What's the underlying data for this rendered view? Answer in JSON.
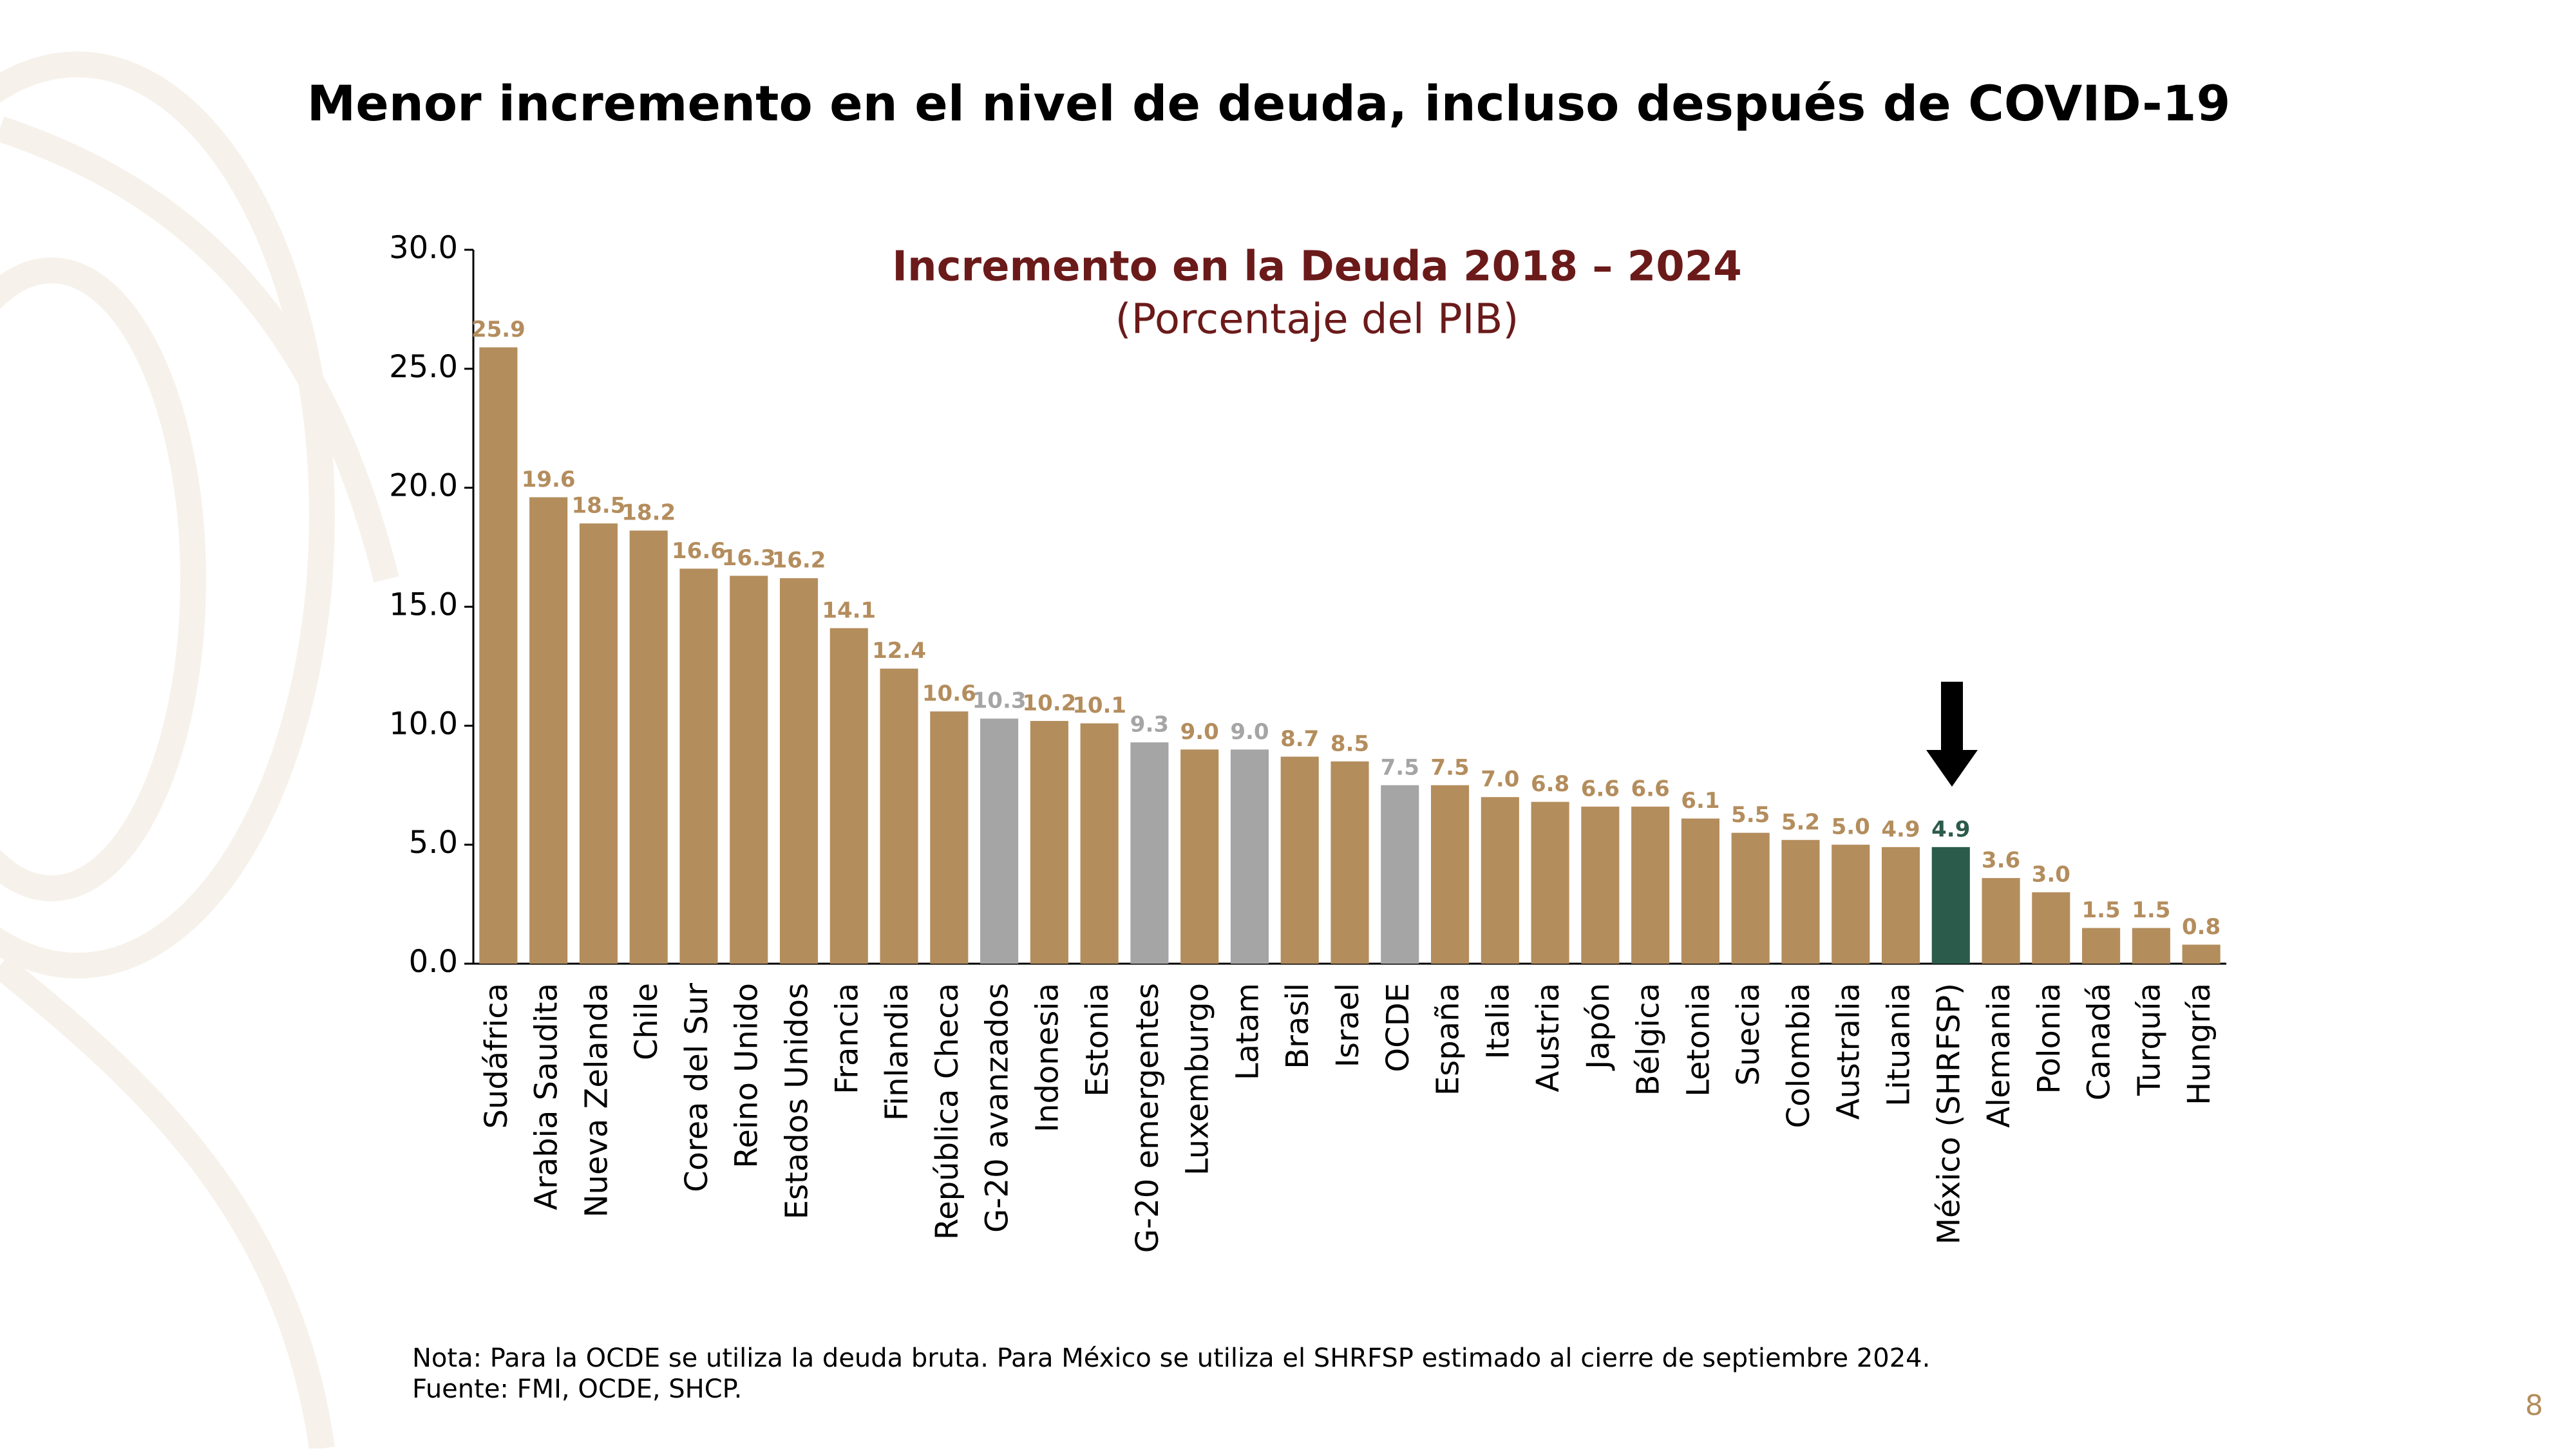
{
  "slide": {
    "title": "Menor incremento en el nivel de deuda, incluso después de COVID-19",
    "note": "Nota: Para la OCDE se utiliza la deuda bruta. Para México se utiliza el SHRFSP estimado al cierre de septiembre 2024.",
    "source": "Fuente: FMI, OCDE, SHCP.",
    "page_number": "8"
  },
  "chart_data": {
    "type": "bar",
    "title": "Incremento en la Deuda 2018 – 2024",
    "subtitle": "(Porcentaje del PIB)",
    "categories": [
      "Sudáfrica",
      "Arabia Saudita",
      "Nueva Zelanda",
      "Chile",
      "Corea del Sur",
      "Reino Unido",
      "Estados Unidos",
      "Francia",
      "Finlandia",
      "República Checa",
      "G-20 avanzados",
      "Indonesia",
      "Estonia",
      "G-20 emergentes",
      "Luxemburgo",
      "Latam",
      "Brasil",
      "Israel",
      "OCDE",
      "España",
      "Italia",
      "Austria",
      "Japón",
      "Bélgica",
      "Letonia",
      "Suecia",
      "Colombia",
      "Australia",
      "Lituania",
      "México (SHRFSP)",
      "Alemania",
      "Polonia",
      "Canadá",
      "Turquía",
      "Hungría"
    ],
    "values": [
      25.9,
      19.6,
      18.5,
      18.2,
      16.6,
      16.3,
      16.2,
      14.1,
      12.4,
      10.6,
      10.3,
      10.2,
      10.1,
      9.3,
      9.0,
      9.0,
      8.7,
      8.5,
      7.5,
      7.5,
      7.0,
      6.8,
      6.6,
      6.6,
      6.1,
      5.5,
      5.2,
      5.0,
      4.9,
      4.9,
      3.6,
      3.0,
      1.5,
      1.5,
      0.8
    ],
    "value_labels": [
      "25.9",
      "19.6",
      "18.5",
      "18.2",
      "16.6",
      "16.3",
      "16.2",
      "14.1",
      "12.4",
      "10.6",
      "10.3",
      "10.2",
      "10.1",
      "9.3",
      "9.0",
      "9.0",
      "8.7",
      "8.5",
      "7.5",
      "7.5",
      "7.0",
      "6.8",
      "6.6",
      "6.6",
      "6.1",
      "5.5",
      "5.2",
      "5.0",
      "4.9",
      "4.9",
      "3.6",
      "3.0",
      "1.5",
      "1.5",
      "0.8"
    ],
    "colors": [
      "#b48d5d",
      "#b48d5d",
      "#b48d5d",
      "#b48d5d",
      "#b48d5d",
      "#b48d5d",
      "#b48d5d",
      "#b48d5d",
      "#b48d5d",
      "#b48d5d",
      "#a5a5a5",
      "#b48d5d",
      "#b48d5d",
      "#a5a5a5",
      "#b48d5d",
      "#a5a5a5",
      "#b48d5d",
      "#b48d5d",
      "#a5a5a5",
      "#b48d5d",
      "#b48d5d",
      "#b48d5d",
      "#b48d5d",
      "#b48d5d",
      "#b48d5d",
      "#b48d5d",
      "#b48d5d",
      "#b48d5d",
      "#b48d5d",
      "#2b5b4b",
      "#b48d5d",
      "#b48d5d",
      "#b48d5d",
      "#b48d5d",
      "#b48d5d"
    ],
    "ylim": [
      0,
      30
    ],
    "yticks": [
      {
        "value": 0,
        "label": "0.0"
      },
      {
        "value": 5,
        "label": "5.0"
      },
      {
        "value": 10,
        "label": "10.0"
      },
      {
        "value": 15,
        "label": "15.0"
      },
      {
        "value": 20,
        "label": "20.0"
      },
      {
        "value": 25,
        "label": "25.0"
      },
      {
        "value": 30,
        "label": "30.0"
      }
    ],
    "grid": false
  }
}
